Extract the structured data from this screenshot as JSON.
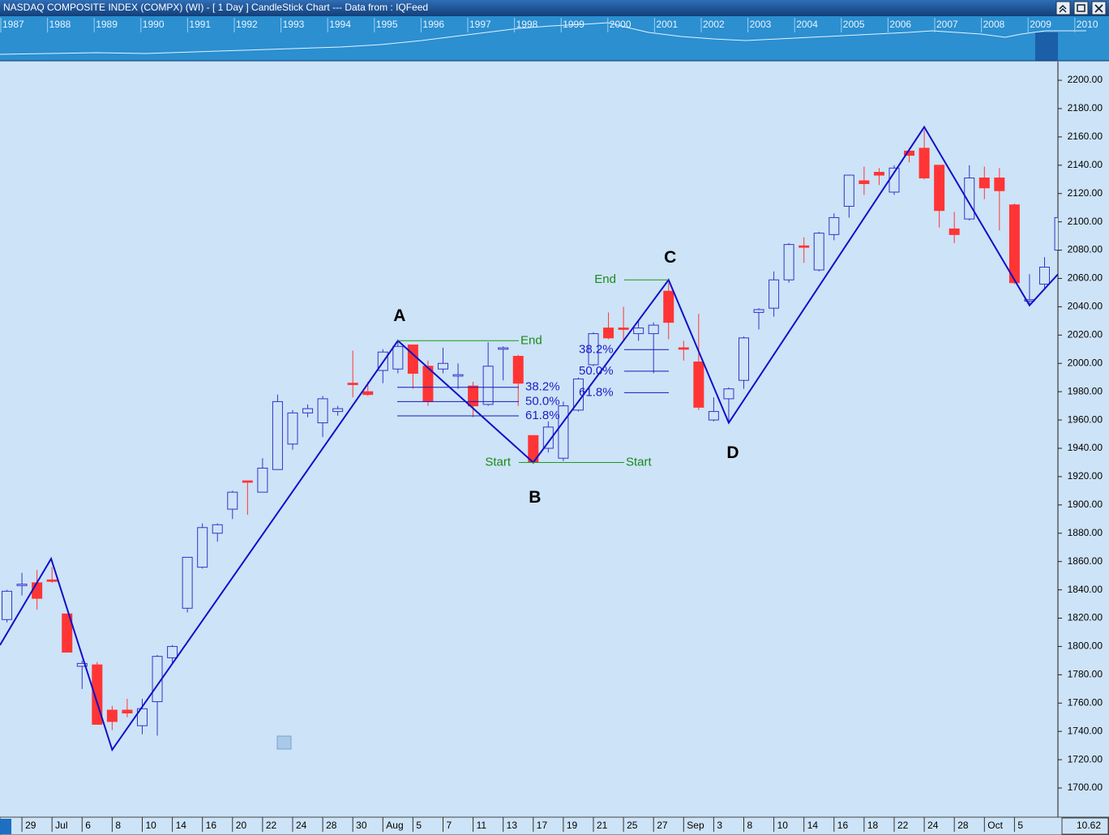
{
  "chart_data": {
    "type": "candlestick",
    "title": "NASDAQ COMPOSITE INDEX (COMPX) (WI) -  [ 1 Day ] CandleStick Chart --- Data from : IQFeed",
    "years": [
      "1987",
      "1988",
      "1989",
      "1990",
      "1991",
      "1992",
      "1993",
      "1994",
      "1995",
      "1996",
      "1997",
      "1998",
      "1999",
      "2000",
      "2001",
      "2002",
      "2003",
      "2004",
      "2005",
      "2006",
      "2007",
      "2008",
      "2009",
      "2010"
    ],
    "categories": [
      null,
      "29",
      null,
      "Jul",
      null,
      "6",
      null,
      "8",
      null,
      "10",
      null,
      "14",
      null,
      "16",
      null,
      "20",
      null,
      "22",
      null,
      "24",
      null,
      "28",
      null,
      "30",
      null,
      "Aug",
      null,
      "5",
      null,
      "7",
      null,
      "11",
      null,
      "13",
      null,
      "17",
      null,
      "19",
      null,
      "21",
      null,
      "25",
      null,
      "27",
      null,
      "Sep",
      null,
      "3",
      null,
      "8",
      null,
      "10",
      null,
      "14",
      null,
      "16",
      null,
      "18",
      null,
      "22",
      null,
      "24",
      null,
      "28",
      null,
      "Oct",
      null,
      "5",
      null,
      null,
      null
    ],
    "open": [
      1819,
      1843,
      1845,
      1847,
      1823,
      1786,
      1787,
      1755,
      1755,
      1744,
      1761,
      1792,
      1827,
      1856,
      1880,
      1897,
      1917,
      1909,
      1925,
      1943,
      1965,
      1958,
      1966,
      1986,
      1980,
      1995,
      1996,
      2013,
      1998,
      1996,
      1991,
      1984,
      1971,
      2010,
      2005,
      1949,
      1940,
      1933,
      1967,
      1999,
      2025,
      2025,
      2021,
      2021,
      2051,
      2011,
      2001,
      1960,
      1975,
      1988,
      2036,
      2039,
      2059,
      2083,
      2066,
      2091,
      2111,
      2129,
      2135,
      2121,
      2150,
      2152,
      2140,
      2095,
      2102,
      2131,
      2131,
      2112,
      2044,
      2056,
      2080
    ],
    "high": [
      1840,
      1852,
      1854,
      1856,
      1823,
      1790,
      1789,
      1758,
      1763,
      1763,
      1794,
      1801,
      1863,
      1887,
      1887,
      1910,
      1917,
      1933,
      1978,
      1967,
      1971,
      1977,
      1970,
      2009,
      1987,
      2010,
      2016,
      2013,
      2002,
      2011,
      2000,
      1987,
      2015,
      2012,
      2006,
      1949,
      1959,
      1973,
      1990,
      2022,
      2036,
      2040,
      2030,
      2029,
      2057,
      2016,
      2035,
      1976,
      1983,
      2019,
      2039,
      2065,
      2085,
      2089,
      2093,
      2106,
      2133,
      2139,
      2138,
      2140,
      2152,
      2165,
      2140,
      2107,
      2140,
      2139,
      2138,
      2113,
      2063,
      2075,
      2103
    ],
    "low": [
      1817,
      1836,
      1826,
      1845,
      1796,
      1770,
      1745,
      1741,
      1750,
      1738,
      1737,
      1788,
      1824,
      1855,
      1874,
      1890,
      1893,
      1909,
      1925,
      1939,
      1962,
      1948,
      1963,
      1976,
      1977,
      1986,
      1993,
      1982,
      1970,
      1993,
      1982,
      1962,
      1970,
      1988,
      1970,
      1929,
      1937,
      1931,
      1966,
      1998,
      2017,
      2016,
      2016,
      1993,
      2017,
      2002,
      1967,
      1959,
      1959,
      1982,
      2024,
      2033,
      2057,
      2071,
      2065,
      2087,
      2103,
      2119,
      2126,
      2119,
      2142,
      2130,
      2096,
      2085,
      2101,
      2116,
      2094,
      2056,
      2041,
      2053,
      2079
    ],
    "close": [
      1839,
      1844,
      1834,
      1846,
      1796,
      1788,
      1745,
      1747,
      1753,
      1756,
      1793,
      1800,
      1863,
      1884,
      1886,
      1909,
      1916,
      1926,
      1973,
      1965,
      1968,
      1975,
      1968,
      1985,
      1978,
      2008,
      2012,
      1993,
      1973,
      2000,
      1992,
      1970,
      1998,
      2011,
      1986,
      1930,
      1955,
      1970,
      1989,
      2021,
      2018,
      2024,
      2025,
      2027,
      2029,
      2010,
      1969,
      1966,
      1982,
      2018,
      2038,
      2059,
      2084,
      2082,
      2092,
      2103,
      2133,
      2127,
      2133,
      2138,
      2147,
      2131,
      2108,
      2091,
      2131,
      2124,
      2122,
      2057,
      2045,
      2068,
      2103
    ],
    "up_color": "#3535c8",
    "down_color": "#ff3535",
    "zigzag": {
      "x": [
        -0.46,
        2.94,
        7,
        26,
        35,
        44,
        48,
        61,
        68,
        69.89
      ],
      "values": [
        1801,
        1862,
        1727,
        2016,
        1930,
        2059,
        1958,
        2167,
        2041,
        2063
      ],
      "color": "#1010c8",
      "labels": [
        "A",
        "B",
        "C",
        "D"
      ]
    },
    "fibs": [
      {
        "start": 1930,
        "end": 2016,
        "start_label": "Start",
        "end_label": "End",
        "levels": [
          {
            "value": 1983.1,
            "label": "38.2%"
          },
          {
            "value": 1973,
            "label": "50.0%"
          },
          {
            "value": 1962.9,
            "label": "61.8%"
          }
        ]
      },
      {
        "start": 1930,
        "end": 2059,
        "start_label": "Start",
        "end_label": "End",
        "levels": [
          {
            "value": 2009.7,
            "label": "38.2%"
          },
          {
            "value": 1994.5,
            "label": "50.0%"
          },
          {
            "value": 1979.3,
            "label": "61.8%"
          }
        ]
      }
    ],
    "xlim": [
      -0.46,
      69.89
    ],
    "ylim": [
      1679.4,
      2213.2
    ],
    "yticks": [
      {
        "value": 1700,
        "label": "1700.00"
      },
      {
        "value": 1720,
        "label": "1720.00"
      },
      {
        "value": 1740,
        "label": "1740.00"
      },
      {
        "value": 1760,
        "label": "1760.00"
      },
      {
        "value": 1780,
        "label": "1780.00"
      },
      {
        "value": 1800,
        "label": "1800.00"
      },
      {
        "value": 1820,
        "label": "1820.00"
      },
      {
        "value": 1840,
        "label": "1840.00"
      },
      {
        "value": 1860,
        "label": "1860.00"
      },
      {
        "value": 1880,
        "label": "1880.00"
      },
      {
        "value": 1900,
        "label": "1900.00"
      },
      {
        "value": 1920,
        "label": "1920.00"
      },
      {
        "value": 1940,
        "label": "1940.00"
      },
      {
        "value": 1960,
        "label": "1960.00"
      },
      {
        "value": 1980,
        "label": "1980.00"
      },
      {
        "value": 2000,
        "label": "2000.00"
      },
      {
        "value": 2020,
        "label": "2020.00"
      },
      {
        "value": 2040,
        "label": "2040.00"
      },
      {
        "value": 2060,
        "label": "2060.00"
      },
      {
        "value": 2080,
        "label": "2080.00"
      },
      {
        "value": 2100,
        "label": "2100.00"
      },
      {
        "value": 2120,
        "label": "2120.00"
      },
      {
        "value": 2140,
        "label": "2140.00"
      },
      {
        "value": 2160,
        "label": "2160.00"
      },
      {
        "value": 2180,
        "label": "2180.00"
      },
      {
        "value": 2200,
        "label": "2200.00"
      }
    ],
    "corner_value": "10.62"
  }
}
